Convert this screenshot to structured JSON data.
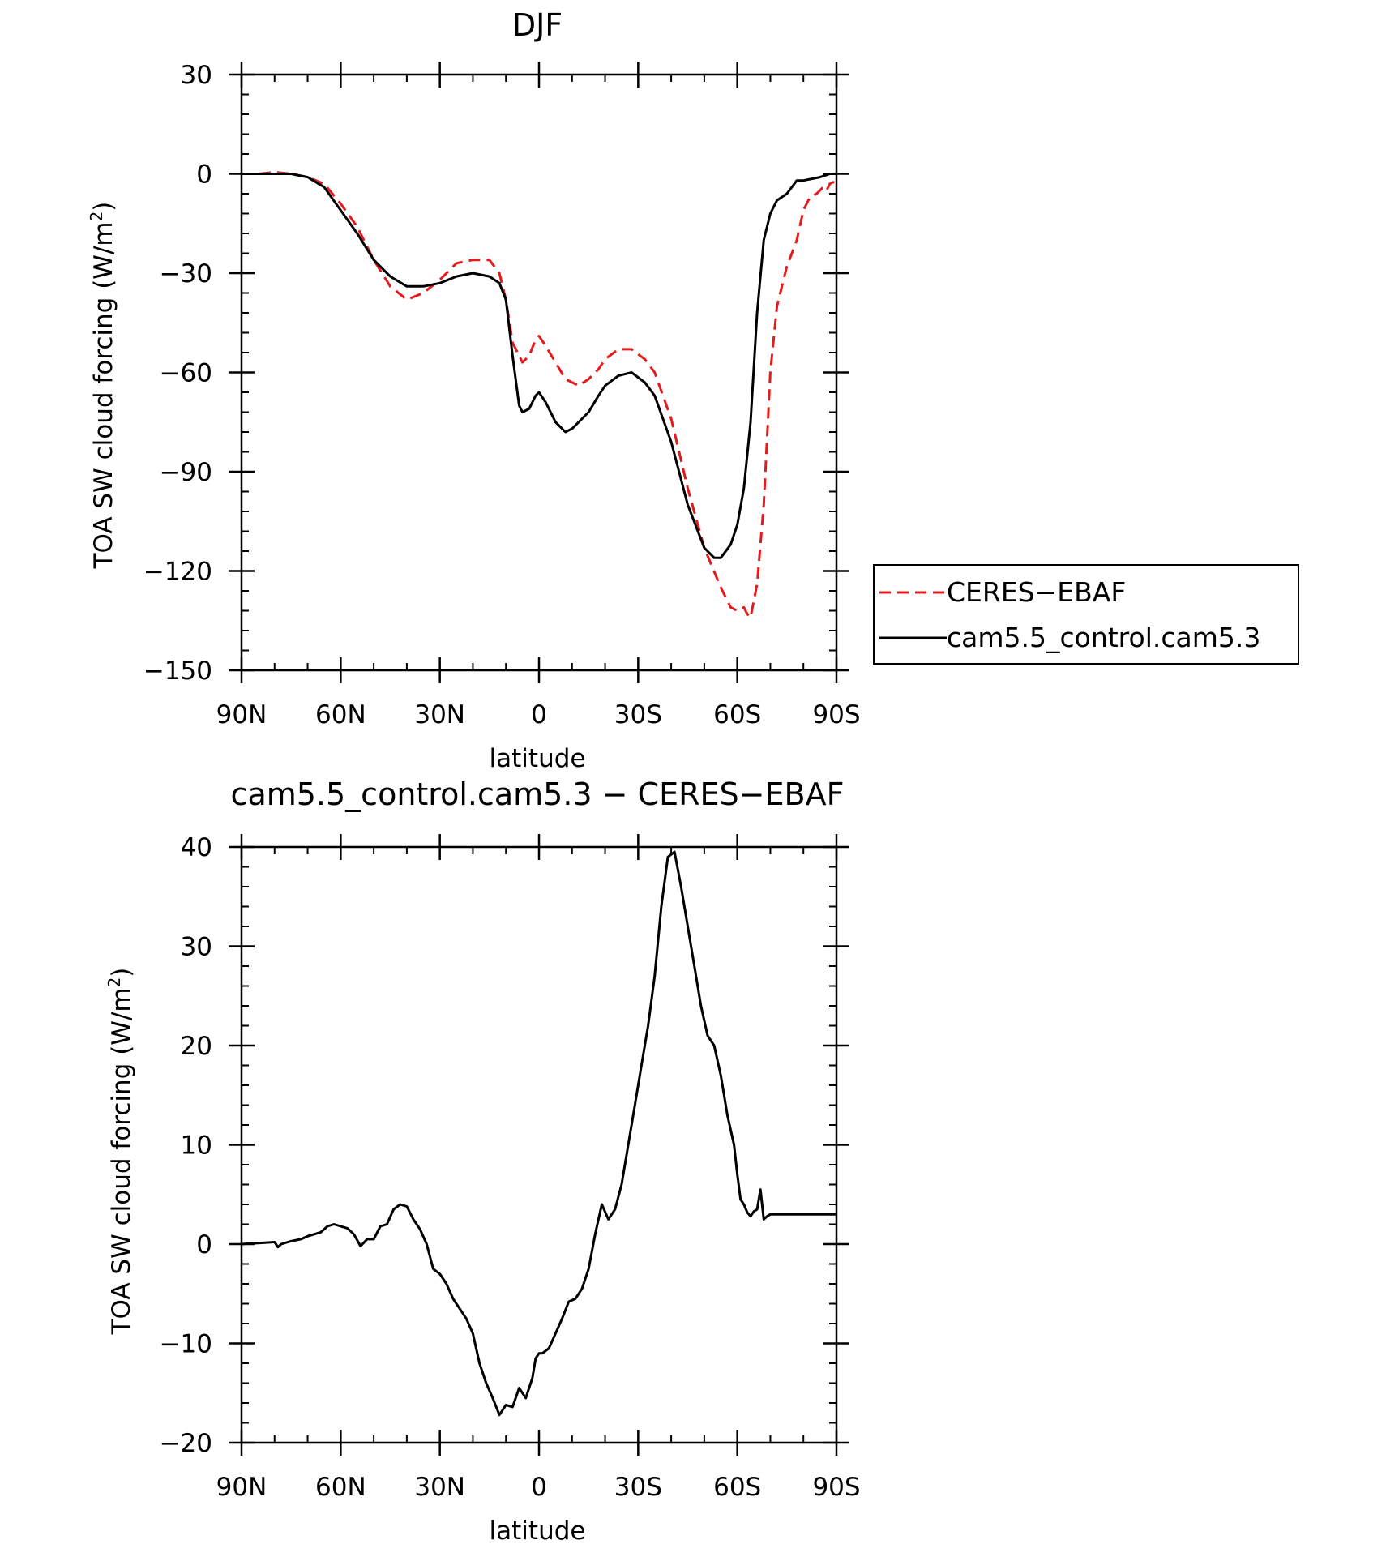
{
  "chart_data": [
    {
      "type": "line",
      "title": "DJF",
      "xlabel": "latitude",
      "ylabel": "TOA SW cloud forcing (W/m",
      "ylabel_sup": "2",
      "ylabel_close": ")",
      "xlim": [
        -90,
        90
      ],
      "ylim": [
        -150,
        30
      ],
      "yticks": [
        30,
        0,
        -30,
        -60,
        -90,
        -120,
        -150
      ],
      "ytick_labels": [
        "30",
        "0",
        "−30",
        "−60",
        "−90",
        "−120",
        "−150"
      ],
      "xticks": [
        -90,
        -60,
        -30,
        0,
        30,
        60,
        90
      ],
      "xtick_labels": [
        "90N",
        "60N",
        "30N",
        "0",
        "30S",
        "60S",
        "90S"
      ],
      "legend": {
        "position": "right",
        "entries": [
          {
            "label": "CERES−EBAF",
            "color": "#e41a1c",
            "dash": "dashed"
          },
          {
            "label": "cam5.5_control.cam5.3",
            "color": "#000000",
            "dash": "solid"
          }
        ]
      },
      "series": [
        {
          "name": "CERES−EBAF",
          "color": "#e41a1c",
          "dash": "dashed",
          "x": [
            -90,
            -85,
            -80,
            -75,
            -70,
            -65,
            -60,
            -55,
            -50,
            -45,
            -40,
            -35,
            -30,
            -25,
            -20,
            -15,
            -12,
            -10,
            -8,
            -5,
            -3,
            -1,
            0,
            2,
            5,
            8,
            12,
            15,
            18,
            20,
            24,
            28,
            32,
            35,
            40,
            45,
            50,
            55,
            58,
            60,
            62,
            63,
            64,
            66,
            68,
            70,
            72,
            75,
            78,
            80,
            82,
            84,
            85,
            86,
            87,
            88,
            89,
            90
          ],
          "values": [
            0,
            0,
            0.5,
            0,
            -1,
            -3,
            -9,
            -16,
            -26,
            -34,
            -38,
            -36,
            -32,
            -27,
            -26,
            -26,
            -30,
            -38,
            -51,
            -57,
            -55,
            -50,
            -49,
            -52,
            -57,
            -62,
            -64,
            -62,
            -59,
            -56,
            -53,
            -53,
            -56,
            -60,
            -74,
            -95,
            -113,
            -125,
            -131,
            -132,
            -131,
            -133,
            -134,
            -124,
            -100,
            -60,
            -40,
            -28,
            -20,
            -11,
            -7,
            -6,
            -5,
            -4,
            -5,
            -3,
            -2.5,
            -3
          ]
        },
        {
          "name": "cam5.5_control.cam5.3",
          "color": "#000000",
          "dash": "solid",
          "x": [
            -90,
            -85,
            -80,
            -75,
            -70,
            -65,
            -60,
            -55,
            -50,
            -45,
            -40,
            -35,
            -30,
            -25,
            -20,
            -15,
            -12,
            -10,
            -8,
            -6,
            -5,
            -3,
            -1,
            0,
            2,
            5,
            8,
            10,
            12,
            15,
            18,
            20,
            24,
            28,
            32,
            35,
            40,
            45,
            50,
            53,
            55,
            58,
            60,
            62,
            64,
            66,
            68,
            70,
            72,
            75,
            78,
            80,
            85,
            88,
            90
          ],
          "values": [
            0,
            0,
            0,
            0,
            -1,
            -4,
            -11,
            -18,
            -26,
            -31,
            -34,
            -34,
            -33,
            -31,
            -30,
            -31,
            -33,
            -38,
            -55,
            -70,
            -72,
            -71,
            -67,
            -66,
            -69,
            -75,
            -78,
            -77,
            -75,
            -72,
            -67,
            -64,
            -61,
            -60,
            -63,
            -67,
            -81,
            -100,
            -113,
            -116,
            -116,
            -112,
            -106,
            -95,
            -75,
            -42,
            -20,
            -12,
            -8,
            -6,
            -2,
            -2,
            -1,
            0,
            0
          ]
        }
      ]
    },
    {
      "type": "line",
      "title": "cam5.5_control.cam5.3 − CERES−EBAF",
      "xlabel": "latitude",
      "ylabel": "TOA SW cloud forcing (W/m",
      "ylabel_sup": "2",
      "ylabel_close": ")",
      "xlim": [
        -90,
        90
      ],
      "ylim": [
        -20,
        40
      ],
      "yticks": [
        40,
        30,
        20,
        10,
        0,
        -10,
        -20
      ],
      "ytick_labels": [
        "40",
        "30",
        "20",
        "10",
        "0",
        "−10",
        "−20"
      ],
      "xticks": [
        -90,
        -60,
        -30,
        0,
        30,
        60,
        90
      ],
      "xtick_labels": [
        "90N",
        "60N",
        "30N",
        "0",
        "30S",
        "60S",
        "90S"
      ],
      "series": [
        {
          "name": "cam5.5_control.cam5.3 − CERES−EBAF",
          "color": "#000000",
          "dash": "solid",
          "x": [
            -90,
            -85,
            -80,
            -79,
            -78,
            -75,
            -72,
            -70,
            -68,
            -66,
            -64,
            -62,
            -60,
            -58,
            -56,
            -54,
            -52,
            -50,
            -48,
            -46,
            -44,
            -42,
            -40,
            -38,
            -36,
            -34,
            -32,
            -30,
            -28,
            -26,
            -24,
            -22,
            -20,
            -18,
            -16,
            -14,
            -12,
            -10,
            -8,
            -6,
            -4,
            -2,
            -1,
            0,
            1,
            3,
            5,
            7,
            9,
            11,
            13,
            15,
            17,
            19,
            21,
            23,
            25,
            27,
            29,
            31,
            33,
            35,
            37,
            39,
            41,
            43,
            45,
            47,
            49,
            51,
            53,
            55,
            57,
            59,
            60,
            61,
            62,
            63,
            64,
            65,
            66,
            67,
            68,
            69,
            70,
            71,
            72,
            73,
            75,
            77,
            79,
            80,
            82,
            84,
            86,
            87,
            88,
            89,
            90
          ],
          "values": [
            0,
            0.1,
            0.2,
            -0.3,
            0,
            0.3,
            0.5,
            0.8,
            1,
            1.2,
            1.8,
            2,
            1.8,
            1.6,
            1,
            -0.2,
            0.5,
            0.5,
            1.8,
            2,
            3.5,
            4,
            3.8,
            2.5,
            1.5,
            0,
            -2.5,
            -3,
            -4,
            -5.5,
            -6.5,
            -7.5,
            -9,
            -12,
            -14,
            -15.5,
            -17.2,
            -16.2,
            -16.4,
            -14.5,
            -15.5,
            -13.5,
            -11.5,
            -11,
            -11,
            -10.5,
            -9,
            -7.5,
            -5.8,
            -5.5,
            -4.5,
            -2.5,
            1,
            4,
            2.5,
            3.5,
            6,
            10,
            14,
            18,
            22,
            27,
            34,
            39,
            39.5,
            36,
            32,
            28,
            24,
            21,
            20,
            17,
            13,
            10,
            7,
            4.5,
            4,
            3.2,
            2.8,
            3.3,
            3.5,
            5.5,
            2.5,
            2.8,
            3,
            3,
            3,
            3,
            3,
            3,
            3,
            3,
            3,
            3,
            3,
            3,
            3,
            3,
            3
          ]
        }
      ]
    }
  ]
}
